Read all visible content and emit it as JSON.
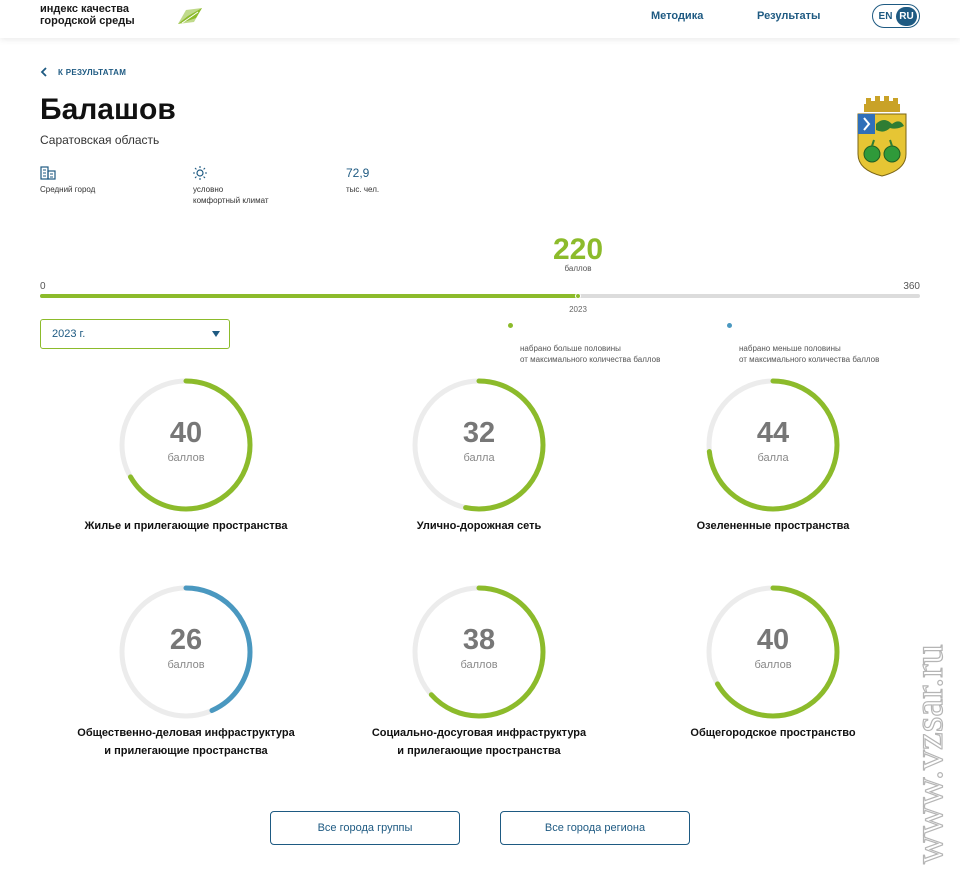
{
  "header": {
    "logo_line1": "индекс качества",
    "logo_line2": "городской среды",
    "nav": [
      {
        "label": "Методика"
      },
      {
        "label": "Результаты"
      }
    ],
    "lang": {
      "en": "EN",
      "ru": "RU",
      "active": "RU"
    }
  },
  "back_label": "К РЕЗУЛЬТАТАМ",
  "city": {
    "name": "Балашов",
    "region": "Саратовская область",
    "facts": [
      {
        "icon": "building-icon",
        "label": "Средний город"
      },
      {
        "icon": "sun-icon",
        "label": "условно\nкомфортный климат"
      },
      {
        "value": "72,9",
        "label": "тыс. чел."
      }
    ]
  },
  "score": {
    "value": 220,
    "value_text": "220",
    "unit": "баллов",
    "min": "0",
    "max": "360",
    "max_value": 360,
    "year": "2023"
  },
  "year_select": {
    "value": "2023 г."
  },
  "legend": [
    {
      "color": "#8cbb2b",
      "text": "набрано больше половины\nот максимального количества баллов"
    },
    {
      "color": "#4a98c0",
      "text": "набрано меньше половины\nот максимального количества баллов"
    }
  ],
  "categories": [
    {
      "value": 40,
      "value_text": "40",
      "unit": "баллов",
      "max": 60,
      "name": "Жилье и прилегающие пространства",
      "color": "#8cbb2b"
    },
    {
      "value": 32,
      "value_text": "32",
      "unit": "балла",
      "max": 60,
      "name": "Улично-дорожная сеть",
      "color": "#8cbb2b"
    },
    {
      "value": 44,
      "value_text": "44",
      "unit": "балла",
      "max": 60,
      "name": "Озелененные пространства",
      "color": "#8cbb2b"
    },
    {
      "value": 26,
      "value_text": "26",
      "unit": "баллов",
      "max": 60,
      "name": "Общественно-деловая инфраструктура\nи прилегающие пространства",
      "color": "#4a98c0"
    },
    {
      "value": 38,
      "value_text": "38",
      "unit": "баллов",
      "max": 60,
      "name": "Социально-досуговая инфраструктура\nи прилегающие пространства",
      "color": "#8cbb2b"
    },
    {
      "value": 40,
      "value_text": "40",
      "unit": "баллов",
      "max": 60,
      "name": "Общегородское пространство",
      "color": "#8cbb2b"
    }
  ],
  "buttons": {
    "group": "Все города группы",
    "region": "Все города региона"
  },
  "watermark": "www.vzsar.ru"
}
